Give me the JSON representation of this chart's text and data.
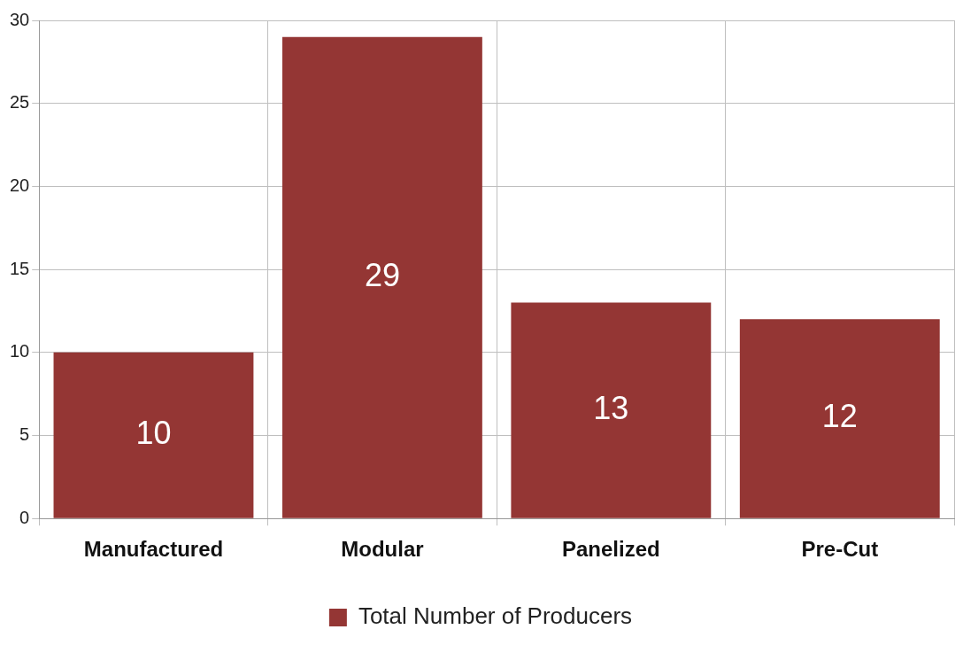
{
  "chart_data": {
    "type": "bar",
    "categories": [
      "Manufactured",
      "Modular",
      "Panelized",
      "Pre-Cut"
    ],
    "series": [
      {
        "name": "Total Number of Producers",
        "color": "#943634",
        "values": [
          10,
          29,
          13,
          12
        ]
      }
    ],
    "ylim": [
      0,
      30
    ],
    "yticks": [
      0,
      5,
      10,
      15,
      20,
      25,
      30
    ],
    "grid": true,
    "legend": "bottom",
    "data_labels": true
  }
}
